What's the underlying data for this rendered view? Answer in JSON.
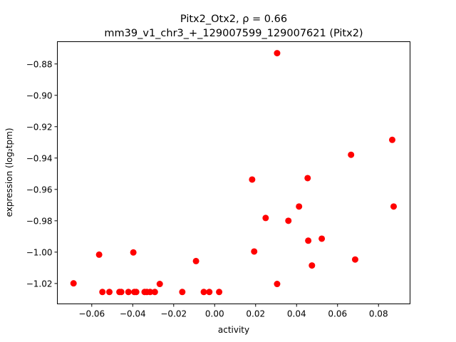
{
  "chart_data": {
    "type": "scatter",
    "title_line1": "Pitx2_Otx2, ρ = 0.66",
    "title_line2": "mm39_v1_chr3_+_129007599_129007621 (Pitx2)",
    "xlabel": "activity",
    "ylabel": "expression (log₂tpm)",
    "xlim": [
      -0.0768,
      0.0954
    ],
    "ylim": [
      -1.033,
      -0.8658
    ],
    "xticks": [
      -0.06,
      -0.04,
      -0.02,
      0.0,
      0.02,
      0.04,
      0.06,
      0.08
    ],
    "xtick_labels": [
      "−0.06",
      "−0.04",
      "−0.02",
      "0.00",
      "0.02",
      "0.04",
      "0.06",
      "0.08"
    ],
    "yticks": [
      -0.88,
      -0.9,
      -0.92,
      -0.94,
      -0.96,
      -0.98,
      -1.0,
      -1.02
    ],
    "ytick_labels": [
      "−0.88",
      "−0.90",
      "−0.92",
      "−0.94",
      "−0.96",
      "−0.98",
      "−1.00",
      "−1.02"
    ],
    "grid": false,
    "marker_color": "#ff0000",
    "points": [
      [
        -0.0689,
        -1.0199
      ],
      [
        -0.0564,
        -1.0016
      ],
      [
        -0.0548,
        -1.0254
      ],
      [
        -0.0514,
        -1.0254
      ],
      [
        -0.0465,
        -1.0254
      ],
      [
        -0.0456,
        -1.0254
      ],
      [
        -0.0421,
        -1.0254
      ],
      [
        -0.0397,
        -1.0002
      ],
      [
        -0.0392,
        -1.0254
      ],
      [
        -0.0383,
        -1.0254
      ],
      [
        -0.0342,
        -1.0254
      ],
      [
        -0.0331,
        -1.0254
      ],
      [
        -0.0315,
        -1.0254
      ],
      [
        -0.0292,
        -1.0254
      ],
      [
        -0.0268,
        -1.0203
      ],
      [
        -0.0158,
        -1.0254
      ],
      [
        -0.0091,
        -1.0057
      ],
      [
        -0.0053,
        -1.0254
      ],
      [
        -0.0026,
        -1.0254
      ],
      [
        0.0022,
        -1.0254
      ],
      [
        0.0183,
        -0.9537
      ],
      [
        0.0193,
        -0.9996
      ],
      [
        0.0249,
        -0.9782
      ],
      [
        0.0305,
        -0.8731
      ],
      [
        0.0305,
        -1.0203
      ],
      [
        0.036,
        -0.98
      ],
      [
        0.0412,
        -0.9709
      ],
      [
        0.0454,
        -0.9528
      ],
      [
        0.0457,
        -0.9927
      ],
      [
        0.0475,
        -1.0085
      ],
      [
        0.0523,
        -0.9914
      ],
      [
        0.0666,
        -0.9379
      ],
      [
        0.0686,
        -1.0047
      ],
      [
        0.0867,
        -0.9284
      ],
      [
        0.0874,
        -0.9709
      ]
    ]
  }
}
